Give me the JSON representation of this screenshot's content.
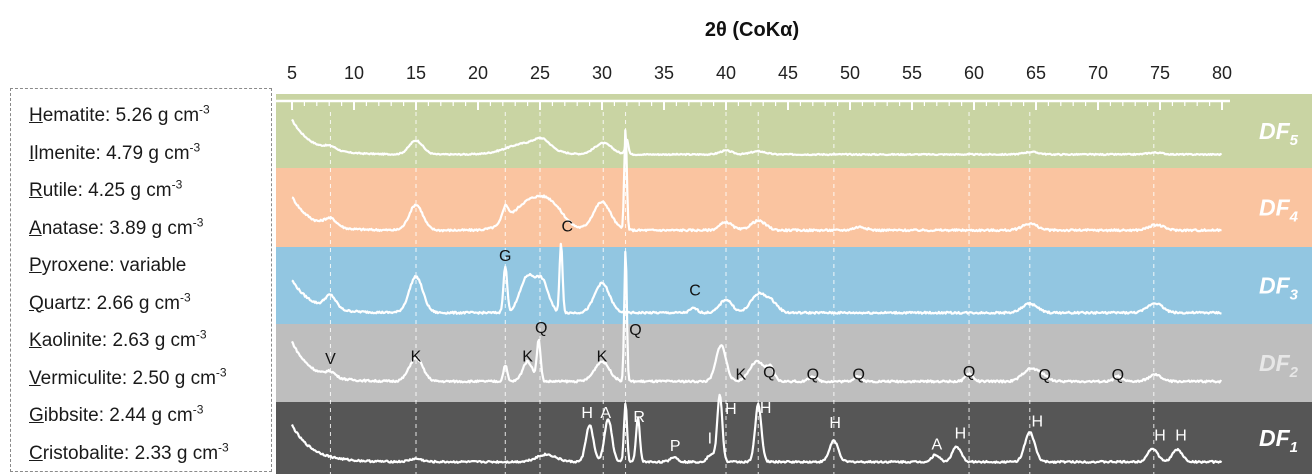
{
  "legend": [
    {
      "initial": "H",
      "rest": "ematite",
      "value": ": 5.26 g cm",
      "sup": "-3"
    },
    {
      "initial": "I",
      "rest": "lmenite",
      "value": ": 4.79 g cm",
      "sup": "-3"
    },
    {
      "initial": "R",
      "rest": "utile",
      "value": ": 4.25 g cm",
      "sup": "-3"
    },
    {
      "initial": "A",
      "rest": "natase",
      "value": ": 3.89 g cm",
      "sup": "-3"
    },
    {
      "initial": "P",
      "rest": "yroxene",
      "value": ": variable",
      "sup": ""
    },
    {
      "initial": "Q",
      "rest": "uartz",
      "value": ": 2.66 g cm",
      "sup": "-3"
    },
    {
      "initial": "K",
      "rest": "aolinite",
      "value": ": 2.63 g cm",
      "sup": "-3"
    },
    {
      "initial": "V",
      "rest": "ermiculite",
      "value": ": 2.50 g cm",
      "sup": "-3"
    },
    {
      "initial": "G",
      "rest": "ibbsite",
      "value": ": 2.44 g cm",
      "sup": "-3"
    },
    {
      "initial": "C",
      "rest": "ristobalite",
      "value": ": 2.33 g cm",
      "sup": "-3"
    }
  ],
  "chart_data": {
    "type": "line",
    "xlabel": "2θ (CoKα)",
    "xlim": [
      5,
      80
    ],
    "xticks": [
      5,
      10,
      15,
      20,
      25,
      30,
      35,
      40,
      45,
      50,
      55,
      60,
      65,
      70,
      75,
      80
    ],
    "colors": {
      "DF5": "#c9d4a3",
      "DF4": "#fac4a0",
      "DF3": "#92c6e1",
      "DF2": "#bebebe",
      "DF1": "#565656",
      "line": "#ffffff",
      "label2": "#e7e7e7"
    },
    "reference_lines": [
      8.1,
      15.0,
      22.2,
      25.0,
      30.1,
      31.9,
      40.0,
      42.6,
      48.7,
      59.6,
      64.5,
      74.5
    ],
    "series": [
      {
        "name": "DF",
        "sub": "5",
        "base": 0.12,
        "curve": 0.55,
        "decay": 1.6,
        "noise": 0.02,
        "peaks": [
          [
            8.1,
            0.06,
            0.5
          ],
          [
            15.0,
            0.22,
            0.55
          ],
          [
            24.0,
            0.18,
            1.6
          ],
          [
            25.2,
            0.12,
            0.6
          ],
          [
            30.1,
            0.18,
            0.7
          ],
          [
            32.0,
            0.25,
            0.12
          ],
          [
            40.0,
            0.06,
            0.5
          ],
          [
            42.6,
            0.05,
            0.6
          ],
          [
            64.6,
            0.04,
            0.6
          ],
          [
            74.6,
            0.03,
            0.6
          ]
        ]
      },
      {
        "name": "DF",
        "sub": "4",
        "base": 0.16,
        "curve": 0.5,
        "decay": 1.5,
        "noise": 0.03,
        "peaks": [
          [
            8.1,
            0.12,
            0.5
          ],
          [
            15.0,
            0.38,
            0.55
          ],
          [
            22.2,
            0.22,
            0.25
          ],
          [
            24.2,
            0.42,
            1.4
          ],
          [
            26.0,
            0.25,
            1.0
          ],
          [
            30.0,
            0.42,
            0.7
          ],
          [
            31.9,
            1.5,
            0.1
          ],
          [
            40.0,
            0.12,
            0.5
          ],
          [
            42.6,
            0.14,
            0.6
          ],
          [
            50.8,
            0.05,
            0.5
          ],
          [
            64.5,
            0.1,
            0.6
          ],
          [
            74.7,
            0.08,
            0.6
          ]
        ]
      },
      {
        "name": "DF",
        "sub": "3",
        "base": 0.08,
        "curve": 0.5,
        "decay": 1.6,
        "noise": 0.03,
        "peaks": [
          [
            8.1,
            0.2,
            0.45
          ],
          [
            15.0,
            0.55,
            0.55
          ],
          [
            22.2,
            0.7,
            0.15
          ],
          [
            24.0,
            0.55,
            0.6
          ],
          [
            25.2,
            0.45,
            0.5
          ],
          [
            26.7,
            1.05,
            0.12
          ],
          [
            30.0,
            0.45,
            0.6
          ],
          [
            37.4,
            0.07,
            0.3
          ],
          [
            40.0,
            0.2,
            0.5
          ],
          [
            42.6,
            0.28,
            0.6
          ],
          [
            43.7,
            0.15,
            0.5
          ],
          [
            64.5,
            0.14,
            0.6
          ],
          [
            74.6,
            0.15,
            0.6
          ]
        ]
      },
      {
        "name": "DF",
        "sub": "2",
        "base": 0.22,
        "curve": 0.6,
        "decay": 1.5,
        "noise": 0.03,
        "peaks": [
          [
            8.1,
            0.08,
            0.4
          ],
          [
            15.0,
            0.35,
            0.55
          ],
          [
            22.2,
            0.25,
            0.15
          ],
          [
            24.0,
            0.3,
            0.4
          ],
          [
            24.9,
            0.6,
            0.15
          ],
          [
            30.0,
            0.3,
            0.6
          ],
          [
            31.9,
            2.0,
            0.1
          ],
          [
            39.6,
            0.55,
            0.4
          ],
          [
            42.5,
            0.3,
            0.6
          ],
          [
            43.6,
            0.18,
            0.3
          ],
          [
            47.0,
            0.08,
            0.3
          ],
          [
            50.6,
            0.08,
            0.3
          ],
          [
            59.6,
            0.12,
            0.3
          ],
          [
            64.5,
            0.18,
            0.6
          ],
          [
            65.5,
            0.08,
            0.5
          ],
          [
            71.6,
            0.08,
            0.3
          ],
          [
            74.6,
            0.1,
            0.5
          ]
        ]
      },
      {
        "name": "DF",
        "sub": "1",
        "base": 0.1,
        "curve": 0.6,
        "decay": 1.6,
        "noise": 0.03,
        "peaks": [
          [
            15.0,
            0.05,
            0.5
          ],
          [
            25.5,
            0.12,
            0.8
          ],
          [
            29.0,
            0.6,
            0.3
          ],
          [
            30.5,
            0.7,
            0.3
          ],
          [
            31.9,
            0.95,
            0.12
          ],
          [
            32.9,
            0.72,
            0.15
          ],
          [
            35.8,
            0.08,
            0.3
          ],
          [
            38.8,
            0.12,
            0.3
          ],
          [
            39.5,
            1.1,
            0.2
          ],
          [
            42.6,
            0.95,
            0.25
          ],
          [
            48.7,
            0.35,
            0.35
          ],
          [
            56.9,
            0.12,
            0.3
          ],
          [
            58.6,
            0.25,
            0.35
          ],
          [
            64.5,
            0.48,
            0.4
          ],
          [
            74.4,
            0.22,
            0.4
          ],
          [
            76.4,
            0.2,
            0.4
          ]
        ]
      }
    ],
    "annotations": [
      {
        "band": 3,
        "text": "G",
        "x": 22.2,
        "y": 0.87
      },
      {
        "band": 3,
        "text": "C",
        "x": 27.2,
        "y": 1.32
      },
      {
        "band": 3,
        "text": "C",
        "x": 37.5,
        "y": 0.34
      },
      {
        "band": 2,
        "text": "V",
        "x": 8.1,
        "y": 0.48
      },
      {
        "band": 2,
        "text": "K",
        "x": 15.0,
        "y": 0.52
      },
      {
        "band": 2,
        "text": "K",
        "x": 24.0,
        "y": 0.52
      },
      {
        "band": 2,
        "text": "Q",
        "x": 25.1,
        "y": 0.95
      },
      {
        "band": 2,
        "text": "K",
        "x": 30.0,
        "y": 0.52
      },
      {
        "band": 2,
        "text": "Q",
        "x": 32.7,
        "y": 0.92
      },
      {
        "band": 2,
        "text": "K",
        "x": 41.2,
        "y": 0.25
      },
      {
        "band": 2,
        "text": "Q",
        "x": 43.5,
        "y": 0.28
      },
      {
        "band": 2,
        "text": "Q",
        "x": 47.0,
        "y": 0.25
      },
      {
        "band": 2,
        "text": "Q",
        "x": 50.7,
        "y": 0.25
      },
      {
        "band": 2,
        "text": "Q",
        "x": 59.6,
        "y": 0.29
      },
      {
        "band": 2,
        "text": "Q",
        "x": 65.7,
        "y": 0.24
      },
      {
        "band": 2,
        "text": "Q",
        "x": 71.6,
        "y": 0.24
      },
      {
        "band": 1,
        "text": "H",
        "x": 28.8,
        "y": 0.82
      },
      {
        "band": 1,
        "text": "A",
        "x": 30.3,
        "y": 0.82
      },
      {
        "band": 1,
        "text": "R",
        "x": 33.0,
        "y": 0.75
      },
      {
        "band": 1,
        "text": "P",
        "x": 35.9,
        "y": 0.28
      },
      {
        "band": 1,
        "text": "I",
        "x": 38.7,
        "y": 0.4
      },
      {
        "band": 1,
        "text": "H",
        "x": 40.4,
        "y": 0.88
      },
      {
        "band": 1,
        "text": "H",
        "x": 43.2,
        "y": 0.9
      },
      {
        "band": 1,
        "text": "H",
        "x": 48.8,
        "y": 0.65
      },
      {
        "band": 1,
        "text": "A",
        "x": 57.0,
        "y": 0.3
      },
      {
        "band": 1,
        "text": "H",
        "x": 58.9,
        "y": 0.48
      },
      {
        "band": 1,
        "text": "H",
        "x": 65.1,
        "y": 0.68
      },
      {
        "band": 1,
        "text": "H",
        "x": 75.0,
        "y": 0.45
      },
      {
        "band": 1,
        "text": "H",
        "x": 76.7,
        "y": 0.45
      }
    ]
  }
}
